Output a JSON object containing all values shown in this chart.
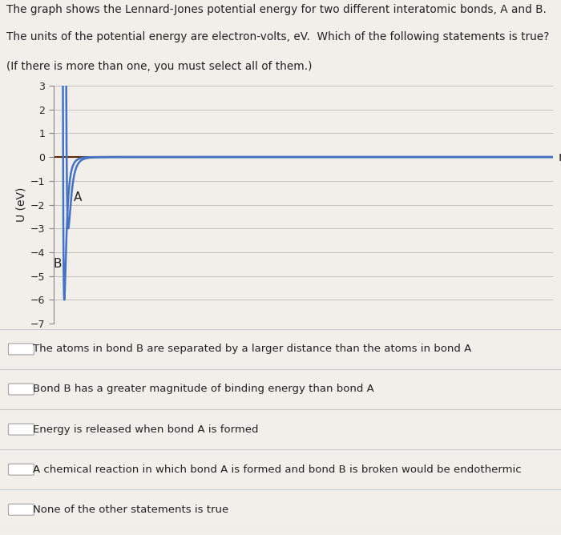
{
  "title_line1": "The graph shows the Lennard-Jones potential energy for two different interatomic bonds, A and B.",
  "title_line2": "The units of the potential energy are electron-volts, eV.  Which of the following statements is true?",
  "title_line3": "(If there is more than one, you must select all of them.)",
  "ylabel": "U (eV)",
  "xlabel": "r",
  "ylim": [
    -7,
    3
  ],
  "yticks": [
    -7,
    -6,
    -5,
    -4,
    -3,
    -2,
    -1,
    0,
    1,
    2,
    3
  ],
  "curve_color": "#4472C4",
  "zero_line_color": "#5C2A00",
  "bg_color": "#F2EFEB",
  "plot_bg_color": "#F2EFEB",
  "label_A": "A",
  "label_B": "B",
  "epsilon_A": 3.0,
  "rmin_A": 0.3,
  "epsilon_B": 6.0,
  "rmin_B": 0.22,
  "choices": [
    "The atoms in bond B are separated by a larger distance than the atoms in bond A",
    "Bond B has a greater magnitude of binding energy than bond A",
    "Energy is released when bond A is formed",
    "A chemical reaction in which bond A is formed and bond B is broken would be endothermic",
    "None of the other statements is true"
  ]
}
